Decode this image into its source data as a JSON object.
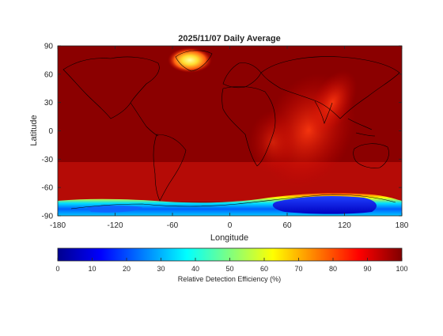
{
  "figure": {
    "title": "2025/11/07 Daily Average",
    "xlabel": "Longitude",
    "ylabel": "Latitude"
  },
  "chart_data": {
    "type": "heatmap",
    "title": "2025/11/07 Daily Average",
    "xlabel": "Longitude",
    "ylabel": "Latitude",
    "xlim": [
      -180,
      180
    ],
    "ylim": [
      -90,
      90
    ],
    "x_ticks": [
      "-180",
      "-120",
      "-60",
      "0",
      "60",
      "120",
      "180"
    ],
    "y_ticks": [
      "90",
      "60",
      "30",
      "0",
      "-30",
      "-60",
      "-90"
    ],
    "colorbar": {
      "label": "Relative Detection Efficiency (%)",
      "range": [
        0,
        100
      ],
      "ticks": [
        "0",
        "10",
        "20",
        "30",
        "40",
        "50",
        "60",
        "70",
        "80",
        "90",
        "100"
      ],
      "colormap": "jet"
    },
    "background_value": 97,
    "features": [
      {
        "name": "greenland",
        "lon": -40,
        "lat": 73,
        "value": 75
      },
      {
        "name": "africa-indian-ocean-band",
        "lon_range": [
          20,
          110
        ],
        "lat_range": [
          -55,
          40
        ],
        "value": 88
      },
      {
        "name": "antarctica",
        "lon_range": [
          -180,
          180
        ],
        "lat_range": [
          -90,
          -68
        ],
        "value": 15
      }
    ]
  },
  "colors": {
    "background_field": "#8b0000",
    "coastline": "#000000",
    "axis": "#262626"
  }
}
